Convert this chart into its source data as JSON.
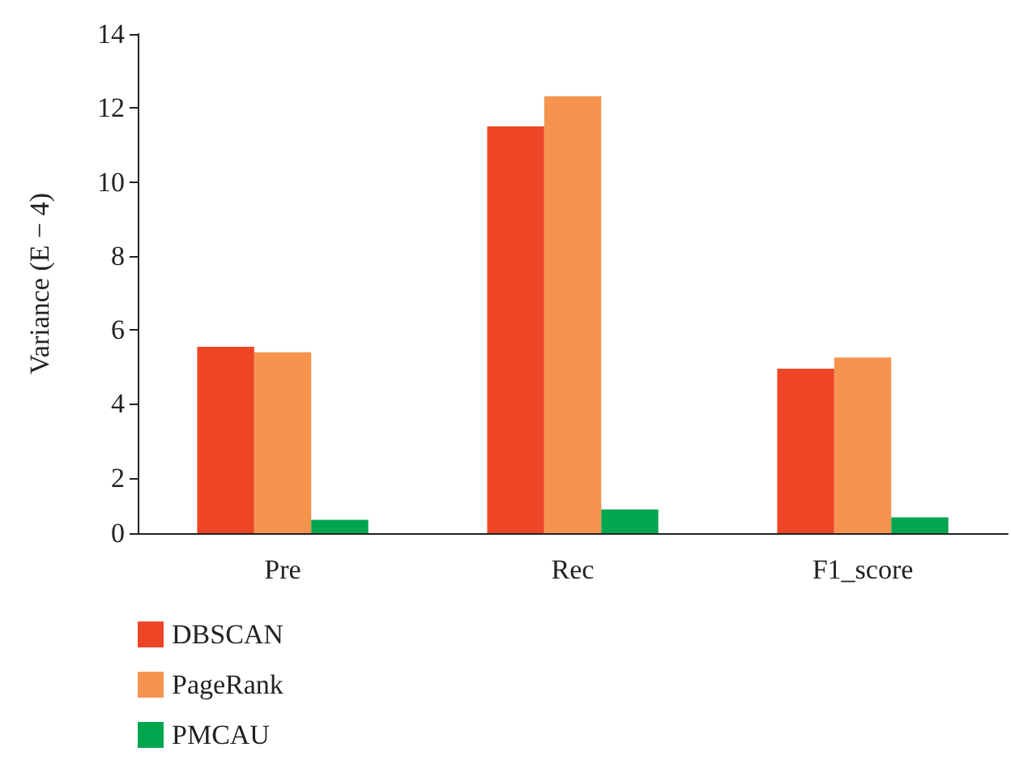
{
  "chart_data": {
    "type": "bar",
    "ylabel": "Variance (E − 4)",
    "categories": [
      "Pre",
      "Rec",
      "F1_score"
    ],
    "series": [
      {
        "name": "DBSCAN",
        "color": "#ee4526",
        "values": [
          5.54,
          11.5,
          4.95
        ]
      },
      {
        "name": "PageRank",
        "color": "#f4944f",
        "values": [
          5.39,
          12.32,
          5.25
        ]
      },
      {
        "name": "PMCAU",
        "color": "#00a550",
        "values": [
          0.86,
          1.14,
          0.93
        ]
      }
    ],
    "ylim": [
      0.5,
      14
    ],
    "yticks": [
      {
        "value": 0.5,
        "label": "0"
      },
      2,
      4,
      6,
      8,
      10,
      12,
      14
    ],
    "grid": false,
    "legend": "bottom left"
  }
}
